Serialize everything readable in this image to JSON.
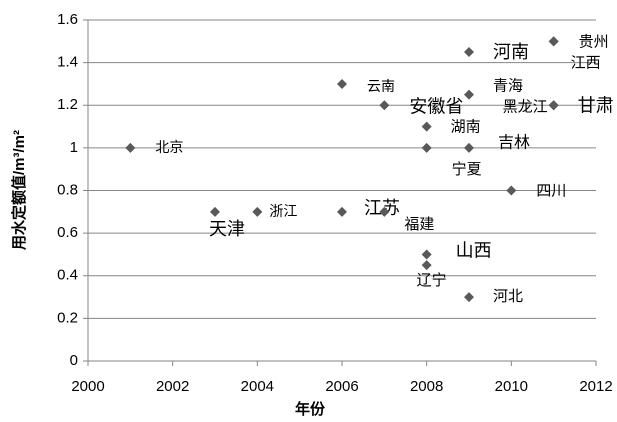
{
  "chart_data": {
    "type": "scatter",
    "x_label": "年份",
    "y_label": "用水定额值/m³/m²",
    "xlim": [
      2000,
      2012
    ],
    "xticks": [
      2000,
      2002,
      2004,
      2006,
      2008,
      2010,
      2012
    ],
    "ylim": [
      0,
      1.6
    ],
    "yticks": [
      0,
      0.2,
      0.4,
      0.6,
      0.8,
      1,
      1.2,
      1.4,
      1.6
    ],
    "grid": true,
    "series": [
      {
        "color": "#595959",
        "x": [
          2001,
          2003,
          2004,
          2006,
          2006,
          2007,
          2007,
          2008,
          2008,
          2009,
          2009,
          2009,
          2011,
          2011,
          2011,
          2011,
          2010,
          2008,
          2008,
          2009
        ],
        "values": [
          1.0,
          0.7,
          0.7,
          1.3,
          0.7,
          0.7,
          1.2,
          1.1,
          1.0,
          1.0,
          1.45,
          1.25,
          1.2,
          1.2,
          1.5,
          1.5,
          0.8,
          0.5,
          0.45,
          0.3
        ],
        "point_labels": [
          "北京",
          "天津",
          "浙江",
          "云南",
          "江苏",
          "福建",
          "安徽省",
          "湖南",
          "宁夏",
          "吉林",
          "河南",
          "青海",
          "黑龙江",
          "甘肃",
          "贵州",
          "江西",
          "四川",
          "山西",
          "辽宁",
          "河北"
        ]
      }
    ]
  }
}
